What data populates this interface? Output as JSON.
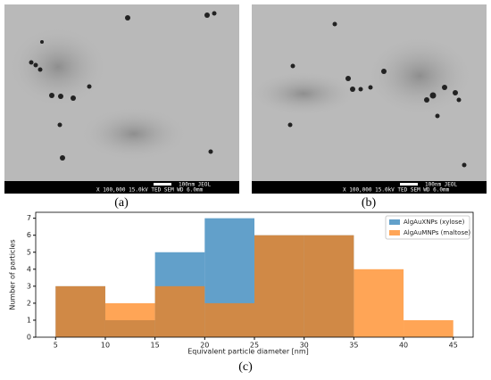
{
  "panels": [
    {
      "label": "(a)",
      "scale": "100nm JEOL",
      "info": "X 100,000  15.0kV TED  SEM  WD 6.0mm"
    },
    {
      "label": "(b)",
      "scale": "100nm JEOL",
      "info": "X 100,000  15.0kV TED  SEM  WD 6.0mm"
    }
  ],
  "chart_data": {
    "type": "histogram",
    "label": "(c)",
    "x_label": "Equivalent particle diameter [nm]",
    "y_label": "Number of particles",
    "bins": [
      5,
      10,
      15,
      20,
      25,
      30,
      35,
      40,
      45
    ],
    "series": [
      {
        "name": "AlgAuXNPs (xylose)",
        "color": "#1f77b4",
        "values": [
          3,
          1,
          5,
          7,
          6,
          6,
          0,
          0
        ]
      },
      {
        "name": "AlgAuMNPs (maltose)",
        "color": "#ff7f0e",
        "values": [
          3,
          2,
          3,
          2,
          6,
          6,
          4,
          1
        ]
      }
    ],
    "xlim": [
      3,
      47
    ],
    "ylim": [
      0,
      7.35
    ],
    "xticks": [
      5,
      10,
      15,
      20,
      25,
      30,
      35,
      40,
      45
    ],
    "yticks": [
      0,
      1,
      2,
      3,
      4,
      5,
      6,
      7
    ],
    "legend": "upper right"
  }
}
